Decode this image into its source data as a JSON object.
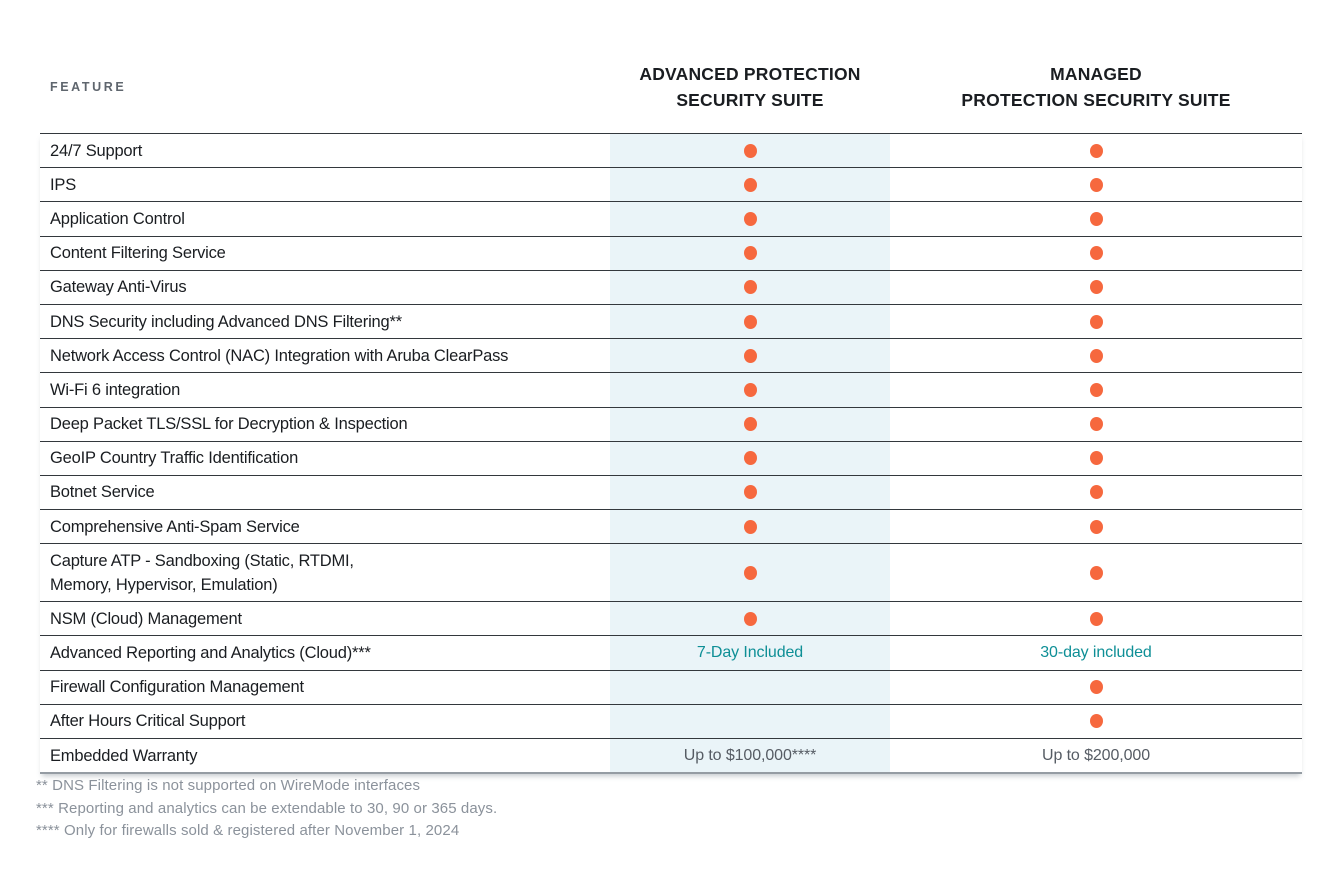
{
  "colors": {
    "dot": "#F6683E",
    "highlight_column_bg": "#EAF4F8",
    "teal_text": "#0E8F96",
    "divider": "#33383D",
    "feature_text": "#1A1D21",
    "header_text": "#1A1D21",
    "feature_eyebrow": "#5F666E",
    "value_gray": "#565C64",
    "footnote_gray": "#8B929B"
  },
  "table": {
    "feature_header": "FEATURE",
    "columns": [
      {
        "key": "advanced",
        "label_line1": "ADVANCED PROTECTION",
        "label_line2": "SECURITY SUITE"
      },
      {
        "key": "managed",
        "label_line1": "MANAGED",
        "label_line2": "PROTECTION SECURITY SUITE"
      }
    ],
    "included_marker": "dot",
    "rows": [
      {
        "feature": "24/7 Support",
        "advanced": "dot",
        "managed": "dot"
      },
      {
        "feature": "IPS",
        "advanced": "dot",
        "managed": "dot"
      },
      {
        "feature": "Application Control",
        "advanced": "dot",
        "managed": "dot"
      },
      {
        "feature": "Content Filtering Service",
        "advanced": "dot",
        "managed": "dot"
      },
      {
        "feature": "Gateway Anti-Virus",
        "advanced": "dot",
        "managed": "dot"
      },
      {
        "feature": "DNS Security including Advanced DNS Filtering**",
        "advanced": "dot",
        "managed": "dot"
      },
      {
        "feature": "Network Access Control (NAC) Integration with Aruba ClearPass",
        "advanced": "dot",
        "managed": "dot"
      },
      {
        "feature": "Wi-Fi 6 integration",
        "advanced": "dot",
        "managed": "dot"
      },
      {
        "feature": "Deep Packet TLS/SSL for Decryption & Inspection",
        "advanced": "dot",
        "managed": "dot"
      },
      {
        "feature": "GeoIP Country Traffic Identification",
        "advanced": "dot",
        "managed": "dot"
      },
      {
        "feature": "Botnet Service",
        "advanced": "dot",
        "managed": "dot"
      },
      {
        "feature": "Comprehensive Anti-Spam Service",
        "advanced": "dot",
        "managed": "dot"
      },
      {
        "feature": "Capture ATP -  Sandboxing (Static, RTDMI,\nMemory, Hypervisor, Emulation)",
        "advanced": "dot",
        "managed": "dot",
        "tall": true
      },
      {
        "feature": "NSM (Cloud) Management",
        "advanced": "dot",
        "managed": "dot"
      },
      {
        "feature": "Advanced Reporting and Analytics (Cloud)***",
        "advanced": "7-Day Included",
        "managed": "30-day included",
        "text_style": "teal"
      },
      {
        "feature": "Firewall Configuration Management",
        "advanced": "",
        "managed": "dot"
      },
      {
        "feature": "After Hours Critical Support",
        "advanced": "",
        "managed": "dot"
      },
      {
        "feature": "Embedded Warranty",
        "advanced": "Up to $100,000****",
        "managed": "Up to $200,000",
        "text_style": "gray"
      }
    ]
  },
  "footnotes": [
    "** DNS Filtering is not supported on WireMode interfaces",
    "*** Reporting and analytics can be extendable to 30, 90 or 365 days.",
    "**** Only for firewalls sold & registered after November 1, 2024"
  ]
}
